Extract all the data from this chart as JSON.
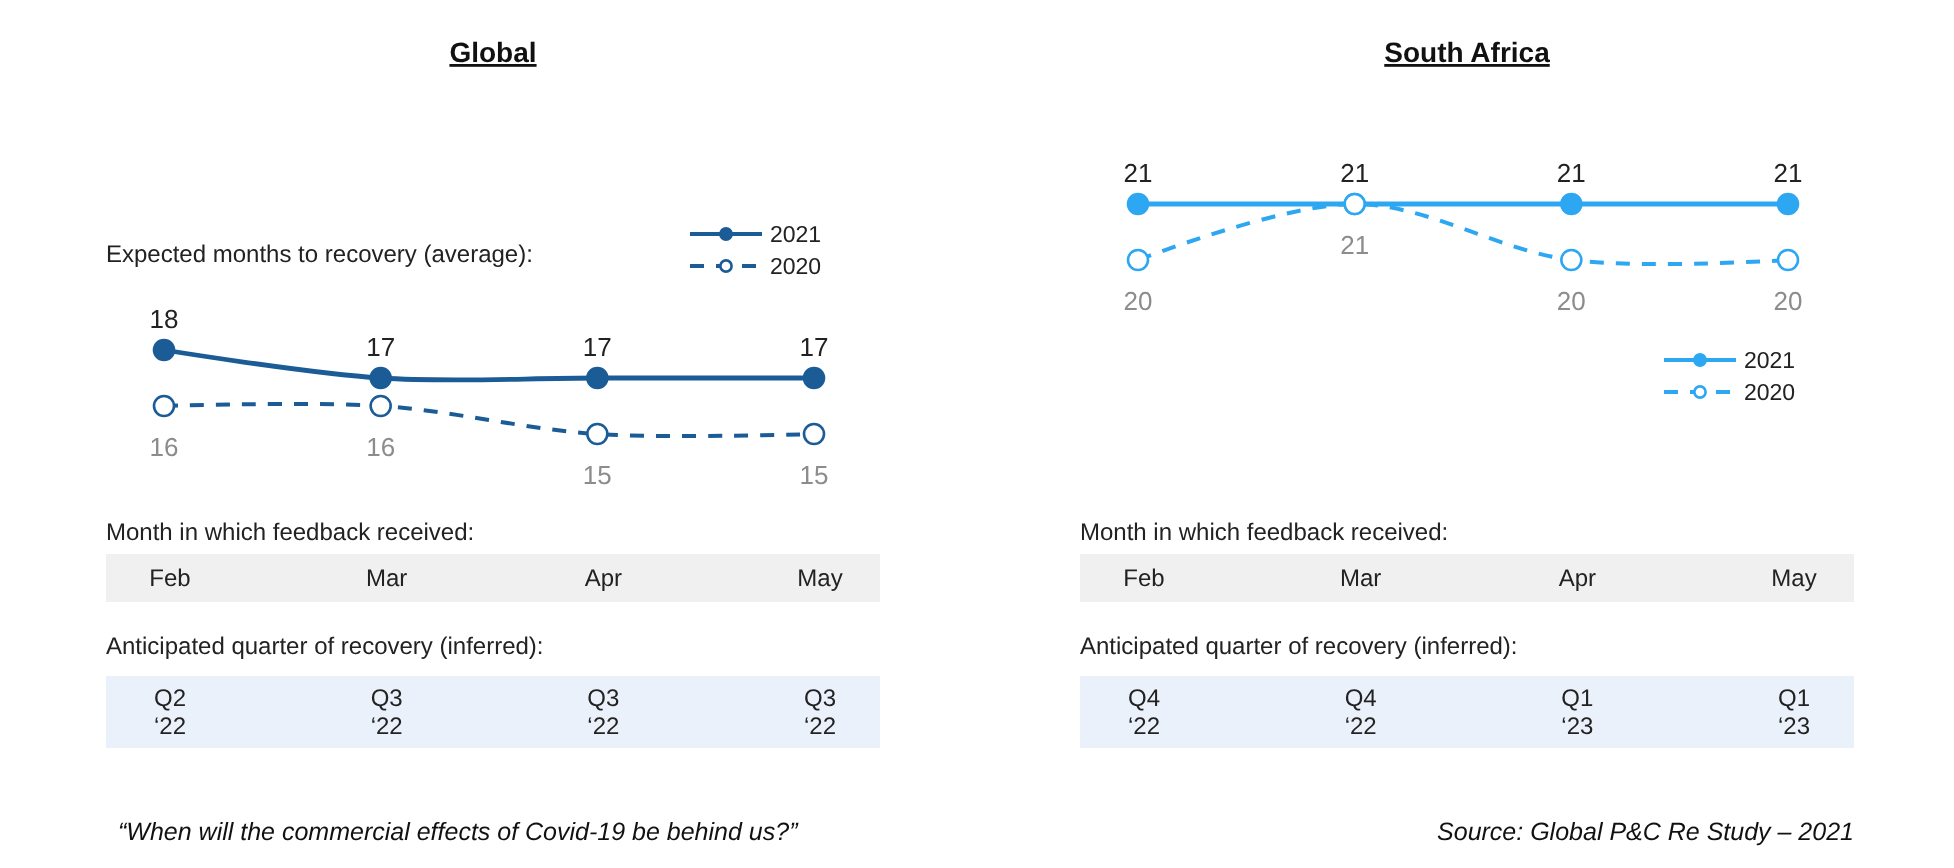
{
  "chart_data": [
    {
      "type": "line",
      "title": "Global",
      "ylabel": "Expected months to recovery (average):",
      "xlabel": "Month in which feedback received:",
      "categories": [
        "Feb",
        "Mar",
        "Apr",
        "May"
      ],
      "series": [
        {
          "name": "2021",
          "color": "#1b5c97",
          "values": [
            18,
            17,
            17,
            17
          ],
          "line_style": "solid"
        },
        {
          "name": "2020",
          "color": "#1b5c97",
          "values": [
            16,
            16,
            15,
            15
          ],
          "line_style": "dashed"
        }
      ],
      "marker": "circle",
      "data_labels": true,
      "legend": "top right",
      "annotations": [
        "Anticipated quarter of recovery (inferred):",
        "Q2 ‘22",
        "Q3 ‘22",
        "Q3 ‘22",
        "Q3 ‘22",
        "“When will the commercial effects of Covid-19 be behind us?”"
      ]
    },
    {
      "type": "line",
      "title": "South Africa",
      "xlabel": "Month in which feedback received:",
      "categories": [
        "Feb",
        "Mar",
        "Apr",
        "May"
      ],
      "series": [
        {
          "name": "2021",
          "color": "#2ea7f2",
          "values": [
            21,
            21,
            21,
            21
          ],
          "line_style": "solid"
        },
        {
          "name": "2020",
          "color": "#2ea7f2",
          "values": [
            20,
            21,
            20,
            20
          ],
          "line_style": "dashed"
        }
      ],
      "marker": "circle",
      "data_labels": true,
      "legend": "bottom right",
      "annotations": [
        "Anticipated quarter of recovery (inferred):",
        "Q4 ‘22",
        "Q4 ‘22",
        "Q1 ‘23",
        "Q1 ‘23",
        "Source: Global P&C Re Study – 2021"
      ]
    }
  ]
}
